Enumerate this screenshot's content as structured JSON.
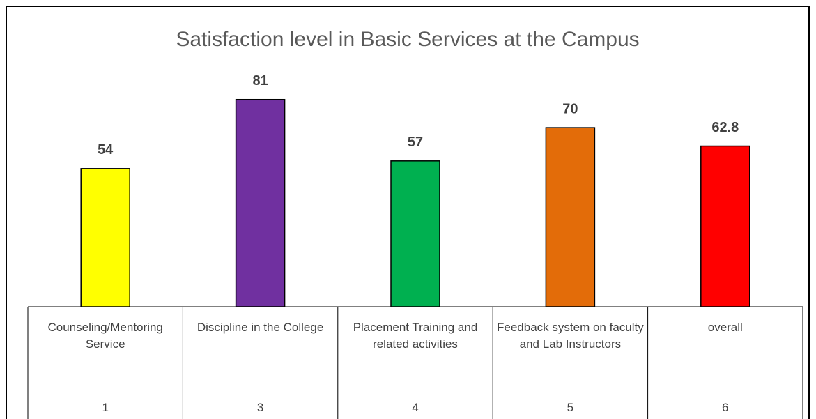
{
  "chart_data": {
    "type": "bar",
    "title": "Satisfaction level in Basic Services at the Campus",
    "categories": [
      "Counseling/Mentoring Service",
      "Discipline in the College",
      "Placement Training and related activities",
      "Feedback system on faculty and Lab Instructors",
      "overall"
    ],
    "category_numbers": [
      "1",
      "3",
      "4",
      "5",
      "6"
    ],
    "values": [
      54,
      81,
      57,
      70,
      62.8
    ],
    "colors": [
      "#ffff00",
      "#7030a0",
      "#00b050",
      "#e36c09",
      "#ff0000"
    ],
    "ylim": [
      0,
      100
    ]
  }
}
